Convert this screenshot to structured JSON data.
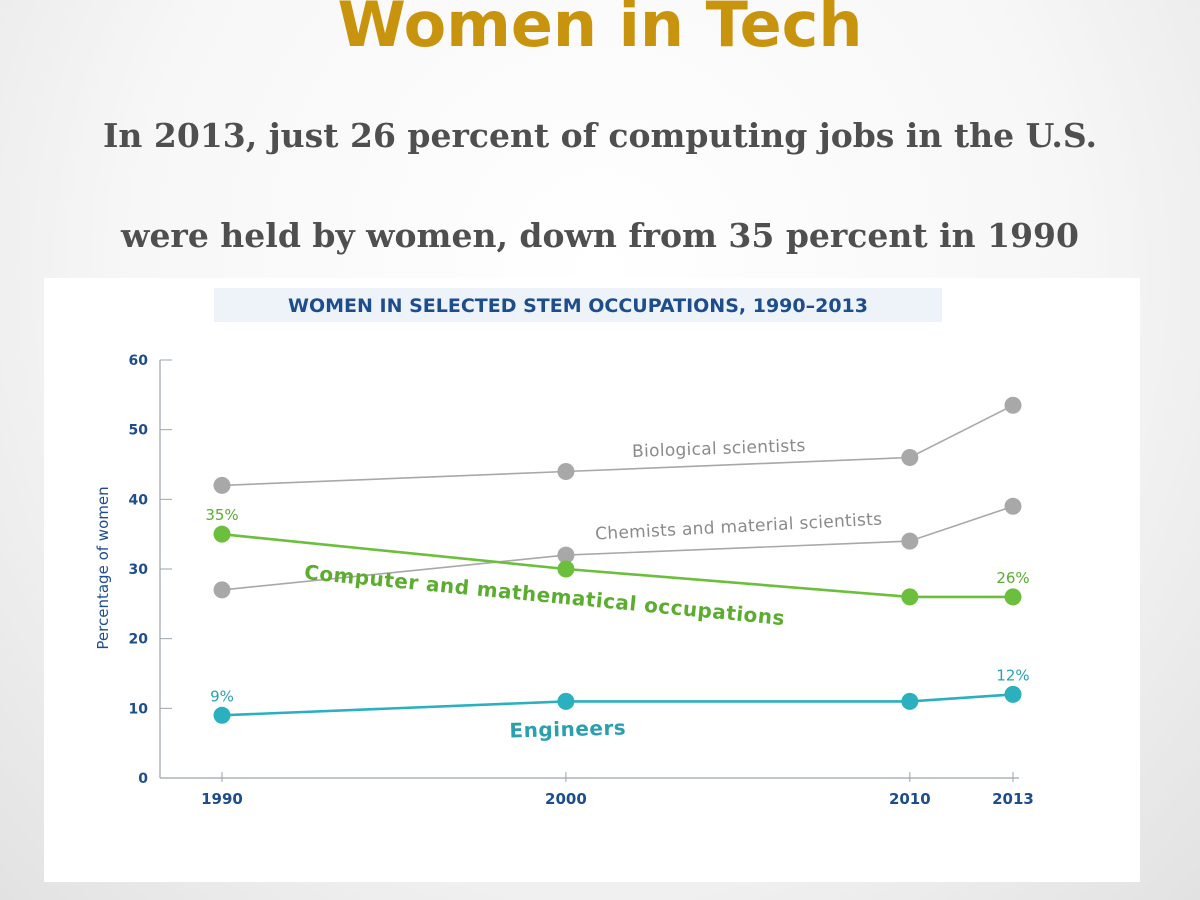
{
  "slide": {
    "title": "Women in Tech",
    "subtitle_line1": "In 2013, just 26 percent of computing jobs in the U.S.",
    "subtitle_line2": "were held by women, down from 35 percent in 1990"
  },
  "colors": {
    "title": "#c9940d",
    "subtitle": "#4f4f4f",
    "chart_title": "#1e4d8c",
    "axis_text": "#1e4d8c",
    "grey_series": "#a8a8a8",
    "grey_label": "#8a8a8a",
    "green_series": "#6cbf3c",
    "teal_series": "#2ab0bf"
  },
  "chart_data": {
    "type": "line",
    "title": "WOMEN IN SELECTED STEM OCCUPATIONS, 1990–2013",
    "xlabel": "",
    "ylabel": "Percentage of women",
    "x": [
      1990,
      2000,
      2010,
      2013
    ],
    "x_tick_labels": [
      "1990",
      "2000",
      "2010",
      "2013"
    ],
    "ylim": [
      0,
      60
    ],
    "y_ticks": [
      0,
      10,
      20,
      30,
      40,
      50,
      60
    ],
    "grid": false,
    "series": [
      {
        "name": "Biological scientists",
        "values": [
          42,
          44,
          46,
          53.5
        ],
        "color": "#a8a8a8",
        "label_color": "#8a8a8a",
        "point_labels": [
          "",
          "",
          "",
          ""
        ]
      },
      {
        "name": "Chemists and material scientists",
        "values": [
          27,
          32,
          34,
          39
        ],
        "color": "#a8a8a8",
        "label_color": "#8a8a8a",
        "point_labels": [
          "",
          "",
          "",
          ""
        ]
      },
      {
        "name": "Computer and mathematical occupations",
        "values": [
          35,
          30,
          26,
          26
        ],
        "color": "#6cbf3c",
        "label_color": "#5aad2e",
        "point_labels": [
          "35%",
          "",
          "",
          "26%"
        ]
      },
      {
        "name": "Engineers",
        "values": [
          9,
          11,
          11,
          12
        ],
        "color": "#2ab0bf",
        "label_color": "#2a9fb0",
        "point_labels": [
          "9%",
          "",
          "",
          "12%"
        ]
      }
    ]
  }
}
